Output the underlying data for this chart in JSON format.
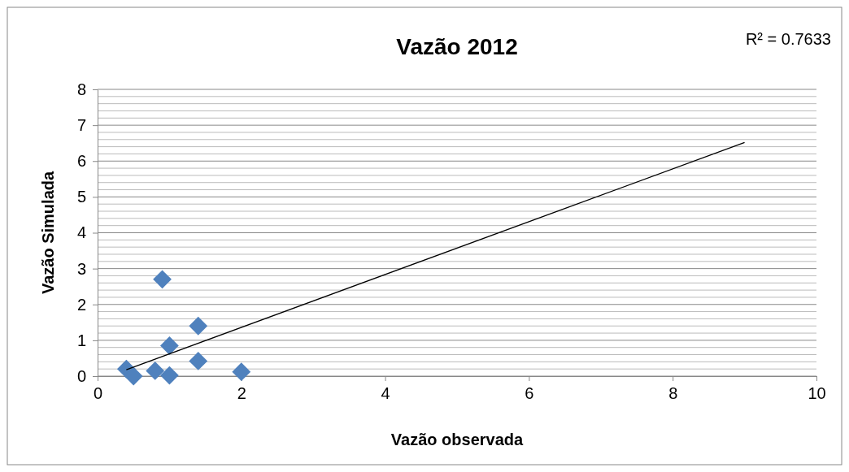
{
  "chart_data": {
    "type": "scatter",
    "title": "Vazão 2012",
    "xlabel": "Vazão observada",
    "ylabel": "Vazão Simulada",
    "annotations": [
      "R² = 0.7633"
    ],
    "xlim": [
      0,
      10
    ],
    "xticks": [
      0,
      2,
      4,
      6,
      8,
      10
    ],
    "ylim": [
      0,
      8
    ],
    "yticks": [
      0,
      {
        "value": 0.2,
        "label": null
      },
      {
        "value": 0.4,
        "label": null
      },
      {
        "value": 0.6,
        "label": null
      },
      {
        "value": 0.8,
        "label": null
      },
      1,
      {
        "value": 1.2,
        "label": null
      },
      {
        "value": 1.4,
        "label": null
      },
      {
        "value": 1.6,
        "label": null
      },
      {
        "value": 1.8,
        "label": null
      },
      2,
      {
        "value": 2.2,
        "label": null
      },
      {
        "value": 2.4,
        "label": null
      },
      {
        "value": 2.6,
        "label": null
      },
      {
        "value": 2.8,
        "label": null
      },
      3,
      {
        "value": 3.2,
        "label": null
      },
      {
        "value": 3.4,
        "label": null
      },
      {
        "value": 3.6,
        "label": null
      },
      {
        "value": 3.8,
        "label": null
      },
      4,
      {
        "value": 4.2,
        "label": null
      },
      {
        "value": 4.4,
        "label": null
      },
      {
        "value": 4.6,
        "label": null
      },
      {
        "value": 4.8,
        "label": null
      },
      5,
      {
        "value": 5.2,
        "label": null
      },
      {
        "value": 5.4,
        "label": null
      },
      {
        "value": 5.6,
        "label": null
      },
      {
        "value": 5.8,
        "label": null
      },
      6,
      {
        "value": 6.2,
        "label": null
      },
      {
        "value": 6.4,
        "label": null
      },
      {
        "value": 6.6,
        "label": null
      },
      {
        "value": 6.8,
        "label": null
      },
      7,
      {
        "value": 7.2,
        "label": null
      },
      {
        "value": 7.4,
        "label": null
      },
      {
        "value": 7.6,
        "label": null
      },
      {
        "value": 7.8,
        "label": null
      },
      8
    ],
    "grid": "y",
    "marker": "diamond",
    "series": [
      {
        "color": "#4f81bd",
        "x": [
          0.4,
          0.5,
          0.8,
          0.9,
          1.0,
          1.0,
          1.4,
          1.4,
          2.0
        ],
        "values": [
          0.2,
          0.0,
          0.15,
          2.7,
          0.85,
          0.02,
          1.4,
          0.42,
          0.12
        ]
      },
      {
        "type": "line",
        "color": "#000000",
        "x": [
          0.4,
          9.0
        ],
        "values": [
          0.18,
          6.52
        ],
        "line_style": "solid",
        "marker": "none"
      }
    ]
  }
}
